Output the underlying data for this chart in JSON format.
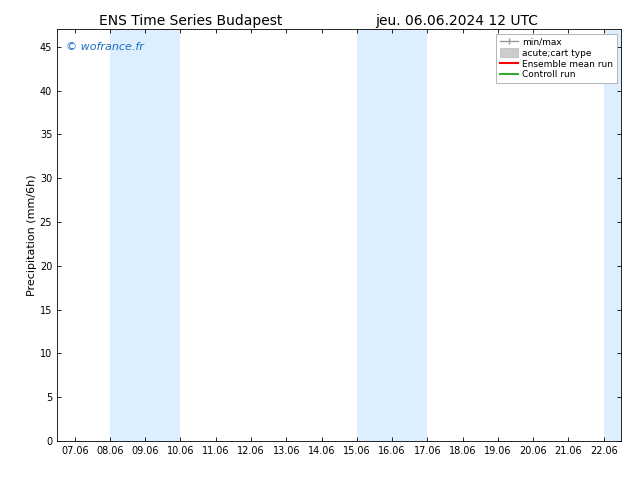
{
  "title_left": "ENS Time Series Budapest",
  "title_right": "jeu. 06.06.2024 12 UTC",
  "ylabel": "Precipitation (mm/6h)",
  "watermark": "© wofrance.fr",
  "watermark_color": "#1a6ec2",
  "ylim": [
    0,
    47
  ],
  "yticks": [
    0,
    5,
    10,
    15,
    20,
    25,
    30,
    35,
    40,
    45
  ],
  "xtick_labels": [
    "07.06",
    "08.06",
    "09.06",
    "10.06",
    "11.06",
    "12.06",
    "13.06",
    "14.06",
    "15.06",
    "16.06",
    "17.06",
    "18.06",
    "19.06",
    "20.06",
    "21.06",
    "22.06"
  ],
  "n_xticks": 16,
  "shaded_regions": [
    {
      "xmin": 1,
      "xmax": 3,
      "color": "#ddeeff"
    },
    {
      "xmin": 8,
      "xmax": 10,
      "color": "#ddeeff"
    },
    {
      "xmin": 15,
      "xmax": 16,
      "color": "#ddeeff"
    }
  ],
  "legend_items": [
    {
      "label": "min/max",
      "color": "#999999",
      "lw": 1.0,
      "ls": "-",
      "type": "errbar"
    },
    {
      "label": "acute;cart type",
      "color": "#cccccc",
      "lw": 8,
      "ls": "-",
      "type": "patch"
    },
    {
      "label": "Ensemble mean run",
      "color": "#ff0000",
      "lw": 1.5,
      "ls": "-",
      "type": "line"
    },
    {
      "label": "Controll run",
      "color": "#33aa33",
      "lw": 1.5,
      "ls": "-",
      "type": "line"
    }
  ],
  "bg_color": "#ffffff",
  "plot_bg_color": "#ffffff",
  "tick_fontsize": 7,
  "label_fontsize": 8,
  "title_fontsize": 10,
  "watermark_fontsize": 8
}
